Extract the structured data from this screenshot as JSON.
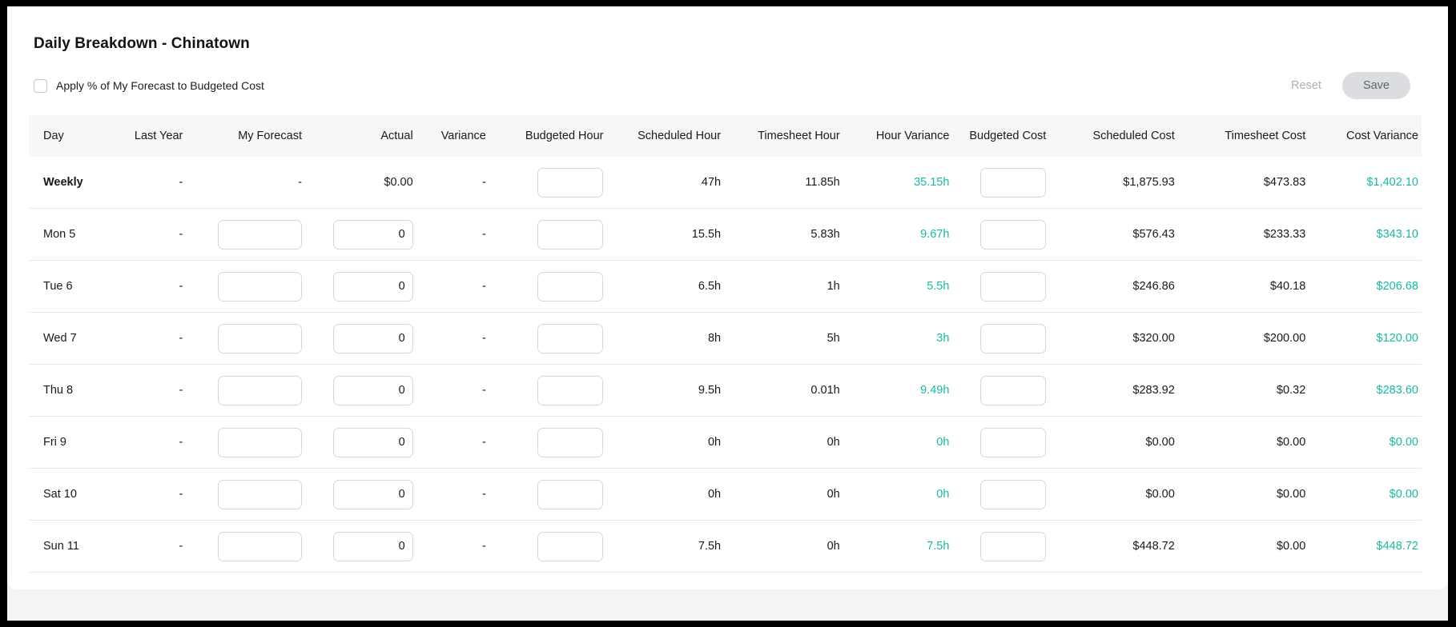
{
  "colors": {
    "teal": "#17b9a3",
    "header_bg": "#f7f7f8",
    "save_button_bg": "#dcdde0"
  },
  "header": {
    "title": "Daily Breakdown - Chinatown",
    "checkbox_label": "Apply % of My Forecast to Budgeted Cost",
    "checkbox_checked": false,
    "reset_label": "Reset",
    "save_label": "Save"
  },
  "table": {
    "columns": [
      "Day",
      "Last Year",
      "My Forecast",
      "Actual",
      "Variance",
      "Budgeted Hour",
      "Scheduled Hour",
      "Timesheet Hour",
      "Hour Variance",
      "Budgeted Cost",
      "Scheduled Cost",
      "Timesheet Cost",
      "Cost Variance"
    ],
    "rows": [
      {
        "day": "Weekly",
        "bold": true,
        "last_year": "-",
        "my_forecast": "-",
        "actual": "$0.00",
        "variance": "-",
        "budgeted_hour": {
          "input": true,
          "value": ""
        },
        "scheduled_hour": "47h",
        "timesheet_hour": "11.85h",
        "hour_variance": "35.15h",
        "budgeted_cost": {
          "input": true,
          "value": ""
        },
        "scheduled_cost": "$1,875.93",
        "timesheet_cost": "$473.83",
        "cost_variance": "$1,402.10"
      },
      {
        "day": "Mon 5",
        "last_year": "-",
        "my_forecast": {
          "input": true,
          "value": ""
        },
        "actual": {
          "input": true,
          "value": "0"
        },
        "variance": "-",
        "budgeted_hour": {
          "input": true,
          "value": ""
        },
        "scheduled_hour": "15.5h",
        "timesheet_hour": "5.83h",
        "hour_variance": "9.67h",
        "budgeted_cost": {
          "input": true,
          "value": ""
        },
        "scheduled_cost": "$576.43",
        "timesheet_cost": "$233.33",
        "cost_variance": "$343.10"
      },
      {
        "day": "Tue 6",
        "last_year": "-",
        "my_forecast": {
          "input": true,
          "value": ""
        },
        "actual": {
          "input": true,
          "value": "0"
        },
        "variance": "-",
        "budgeted_hour": {
          "input": true,
          "value": ""
        },
        "scheduled_hour": "6.5h",
        "timesheet_hour": "1h",
        "hour_variance": "5.5h",
        "budgeted_cost": {
          "input": true,
          "value": ""
        },
        "scheduled_cost": "$246.86",
        "timesheet_cost": "$40.18",
        "cost_variance": "$206.68"
      },
      {
        "day": "Wed 7",
        "last_year": "-",
        "my_forecast": {
          "input": true,
          "value": ""
        },
        "actual": {
          "input": true,
          "value": "0"
        },
        "variance": "-",
        "budgeted_hour": {
          "input": true,
          "value": ""
        },
        "scheduled_hour": "8h",
        "timesheet_hour": "5h",
        "hour_variance": "3h",
        "budgeted_cost": {
          "input": true,
          "value": ""
        },
        "scheduled_cost": "$320.00",
        "timesheet_cost": "$200.00",
        "cost_variance": "$120.00"
      },
      {
        "day": "Thu 8",
        "last_year": "-",
        "my_forecast": {
          "input": true,
          "value": ""
        },
        "actual": {
          "input": true,
          "value": "0"
        },
        "variance": "-",
        "budgeted_hour": {
          "input": true,
          "value": ""
        },
        "scheduled_hour": "9.5h",
        "timesheet_hour": "0.01h",
        "hour_variance": "9.49h",
        "budgeted_cost": {
          "input": true,
          "value": ""
        },
        "scheduled_cost": "$283.92",
        "timesheet_cost": "$0.32",
        "cost_variance": "$283.60"
      },
      {
        "day": "Fri 9",
        "last_year": "-",
        "my_forecast": {
          "input": true,
          "value": ""
        },
        "actual": {
          "input": true,
          "value": "0"
        },
        "variance": "-",
        "budgeted_hour": {
          "input": true,
          "value": ""
        },
        "scheduled_hour": "0h",
        "timesheet_hour": "0h",
        "hour_variance": "0h",
        "budgeted_cost": {
          "input": true,
          "value": ""
        },
        "scheduled_cost": "$0.00",
        "timesheet_cost": "$0.00",
        "cost_variance": "$0.00"
      },
      {
        "day": "Sat 10",
        "last_year": "-",
        "my_forecast": {
          "input": true,
          "value": ""
        },
        "actual": {
          "input": true,
          "value": "0"
        },
        "variance": "-",
        "budgeted_hour": {
          "input": true,
          "value": ""
        },
        "scheduled_hour": "0h",
        "timesheet_hour": "0h",
        "hour_variance": "0h",
        "budgeted_cost": {
          "input": true,
          "value": ""
        },
        "scheduled_cost": "$0.00",
        "timesheet_cost": "$0.00",
        "cost_variance": "$0.00"
      },
      {
        "day": "Sun 11",
        "last_year": "-",
        "my_forecast": {
          "input": true,
          "value": ""
        },
        "actual": {
          "input": true,
          "value": "0"
        },
        "variance": "-",
        "budgeted_hour": {
          "input": true,
          "value": ""
        },
        "scheduled_hour": "7.5h",
        "timesheet_hour": "0h",
        "hour_variance": "7.5h",
        "budgeted_cost": {
          "input": true,
          "value": ""
        },
        "scheduled_cost": "$448.72",
        "timesheet_cost": "$0.00",
        "cost_variance": "$448.72"
      }
    ]
  }
}
